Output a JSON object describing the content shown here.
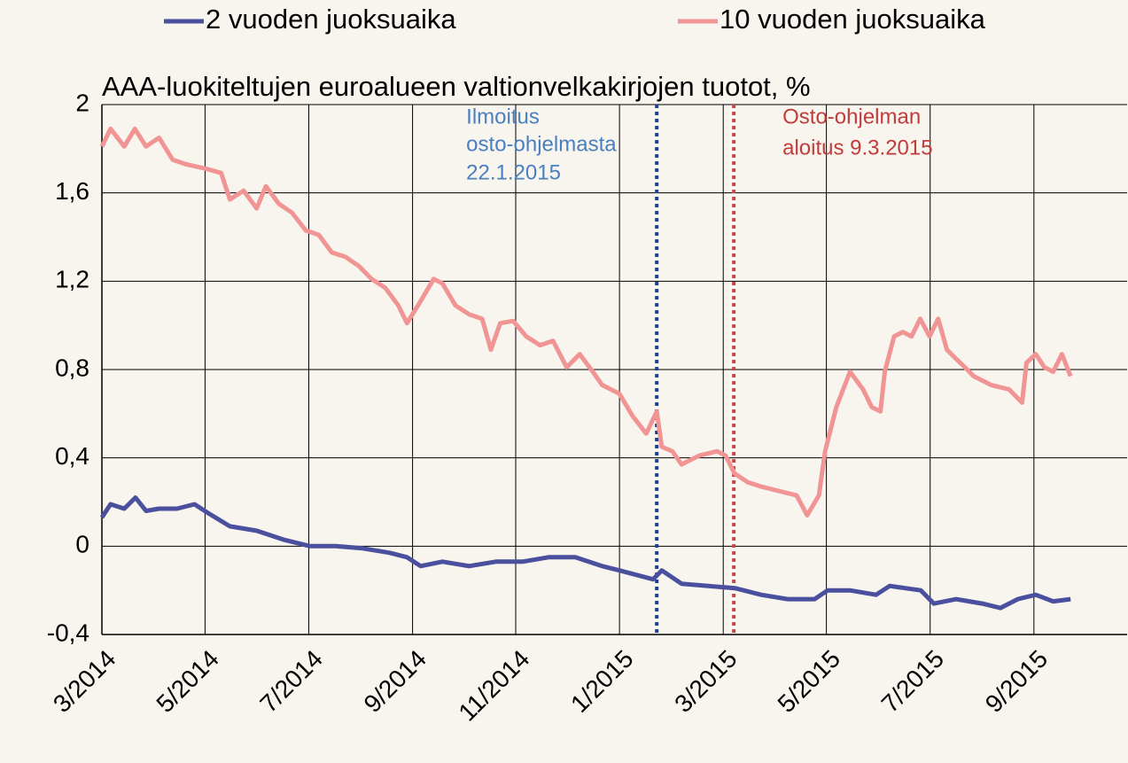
{
  "chart_data": {
    "type": "line",
    "title": "AAA-luokiteltujen euroalueen valtionvelkakirjojen tuotot, %",
    "series": [
      {
        "name": "2 vuoden juoksuaika",
        "color": "#4a4f9e",
        "x": [
          2014.167,
          2014.181,
          2014.203,
          2014.221,
          2014.238,
          2014.259,
          2014.288,
          2014.316,
          2014.338,
          2014.373,
          2014.416,
          2014.459,
          2014.502,
          2014.544,
          2014.587,
          2014.63,
          2014.658,
          2014.68,
          2014.715,
          2014.758,
          2014.801,
          2014.844,
          2014.886,
          2014.929,
          2014.972,
          2015.0,
          2015.027,
          2015.054,
          2015.068,
          2015.1,
          2015.143,
          2015.186,
          2015.228,
          2015.271,
          2015.314,
          2015.335,
          2015.371,
          2015.413,
          2015.435,
          2015.485,
          2015.506,
          2015.542,
          2015.584,
          2015.613,
          2015.641,
          2015.67,
          2015.698,
          2015.726
        ],
        "values": [
          0.13,
          0.19,
          0.17,
          0.22,
          0.16,
          0.17,
          0.17,
          0.19,
          0.15,
          0.09,
          0.07,
          0.03,
          0,
          0,
          -0.01,
          -0.03,
          -0.05,
          -0.09,
          -0.07,
          -0.09,
          -0.07,
          -0.07,
          -0.05,
          -0.05,
          -0.09,
          -0.11,
          -0.13,
          -0.15,
          -0.11,
          -0.17,
          -0.18,
          -0.19,
          -0.22,
          -0.24,
          -0.24,
          -0.2,
          -0.2,
          -0.22,
          -0.18,
          -0.2,
          -0.26,
          -0.24,
          -0.26,
          -0.28,
          -0.24,
          -0.22,
          -0.25,
          -0.24
        ]
      },
      {
        "name": "10 vuoden juoksuaika",
        "color": "#f09494",
        "x": [
          2014.167,
          2014.181,
          2014.203,
          2014.22,
          2014.238,
          2014.259,
          2014.281,
          2014.302,
          2014.334,
          2014.359,
          2014.373,
          2014.395,
          2014.416,
          2014.431,
          2014.452,
          2014.473,
          2014.495,
          2014.516,
          2014.537,
          2014.559,
          2014.58,
          2014.601,
          2014.623,
          2014.644,
          2014.658,
          2014.68,
          2014.701,
          2014.715,
          2014.736,
          2014.758,
          2014.779,
          2014.793,
          2014.808,
          2014.829,
          2014.85,
          2014.872,
          2014.893,
          2014.915,
          2014.936,
          2014.957,
          2014.972,
          2015.0,
          2015.021,
          2015.043,
          2015.06,
          2015.068,
          2015.085,
          2015.1,
          2015.128,
          2015.157,
          2015.171,
          2015.185,
          2015.206,
          2015.228,
          2015.256,
          2015.285,
          2015.302,
          2015.321,
          2015.331,
          2015.349,
          2015.371,
          2015.392,
          2015.406,
          2015.42,
          2015.427,
          2015.442,
          2015.456,
          2015.47,
          2015.484,
          2015.499,
          2015.513,
          2015.527,
          2015.541,
          2015.556,
          2015.57,
          2015.598,
          2015.627,
          2015.648,
          2015.655,
          2015.67,
          2015.684,
          2015.698,
          2015.712,
          2015.726
        ],
        "values": [
          1.81,
          1.89,
          1.81,
          1.89,
          1.81,
          1.85,
          1.75,
          1.73,
          1.71,
          1.69,
          1.57,
          1.61,
          1.53,
          1.63,
          1.55,
          1.51,
          1.43,
          1.41,
          1.33,
          1.31,
          1.27,
          1.21,
          1.17,
          1.09,
          1.01,
          1.11,
          1.21,
          1.19,
          1.09,
          1.05,
          1.03,
          0.89,
          1.01,
          1.02,
          0.95,
          0.91,
          0.93,
          0.81,
          0.87,
          0.79,
          0.73,
          0.69,
          0.59,
          0.51,
          0.61,
          0.45,
          0.43,
          0.37,
          0.41,
          0.43,
          0.41,
          0.33,
          0.29,
          0.27,
          0.25,
          0.23,
          0.14,
          0.23,
          0.43,
          0.63,
          0.79,
          0.71,
          0.63,
          0.61,
          0.79,
          0.95,
          0.97,
          0.95,
          1.03,
          0.95,
          1.03,
          0.89,
          0.85,
          0.81,
          0.77,
          0.73,
          0.71,
          0.65,
          0.83,
          0.87,
          0.81,
          0.79,
          0.87,
          0.77
        ]
      }
    ],
    "xlim": [
      2014.167,
      2015.817
    ],
    "xticks": [
      {
        "value": 2014.167,
        "label": "3/2014"
      },
      {
        "value": 2014.333,
        "label": "5/2014"
      },
      {
        "value": 2014.5,
        "label": "7/2014"
      },
      {
        "value": 2014.667,
        "label": "9/2014"
      },
      {
        "value": 2014.833,
        "label": "11/2014"
      },
      {
        "value": 2015,
        "label": "1/2015"
      },
      {
        "value": 2015.167,
        "label": "3/2015"
      },
      {
        "value": 2015.333,
        "label": "5/2015"
      },
      {
        "value": 2015.5,
        "label": "7/2015"
      },
      {
        "value": 2015.667,
        "label": "9/2015"
      }
    ],
    "ylim": [
      -0.4,
      2
    ],
    "yticks": [
      {
        "value": -0.4,
        "label": "-0,4"
      },
      0,
      {
        "value": 0.4,
        "label": "0,4"
      },
      {
        "value": 0.8,
        "label": "0,8"
      },
      {
        "value": 1.2,
        "label": "1,2"
      },
      {
        "value": 1.6,
        "label": "1,6"
      },
      2
    ],
    "grid": true,
    "legend": "top",
    "annotations": [
      {
        "text": [
          "Ilmoitus",
          "osto-ohjelmasta",
          "22.1.2015"
        ],
        "x": 2015.06,
        "color": "#4a7fc0",
        "line_color": "#1f3f8f"
      },
      {
        "text": [
          "Osto-ohjelman",
          "aloitus 9.3.2015"
        ],
        "x": 2015.184,
        "color": "#c23b3b",
        "line_color": "#c8484a"
      }
    ]
  }
}
